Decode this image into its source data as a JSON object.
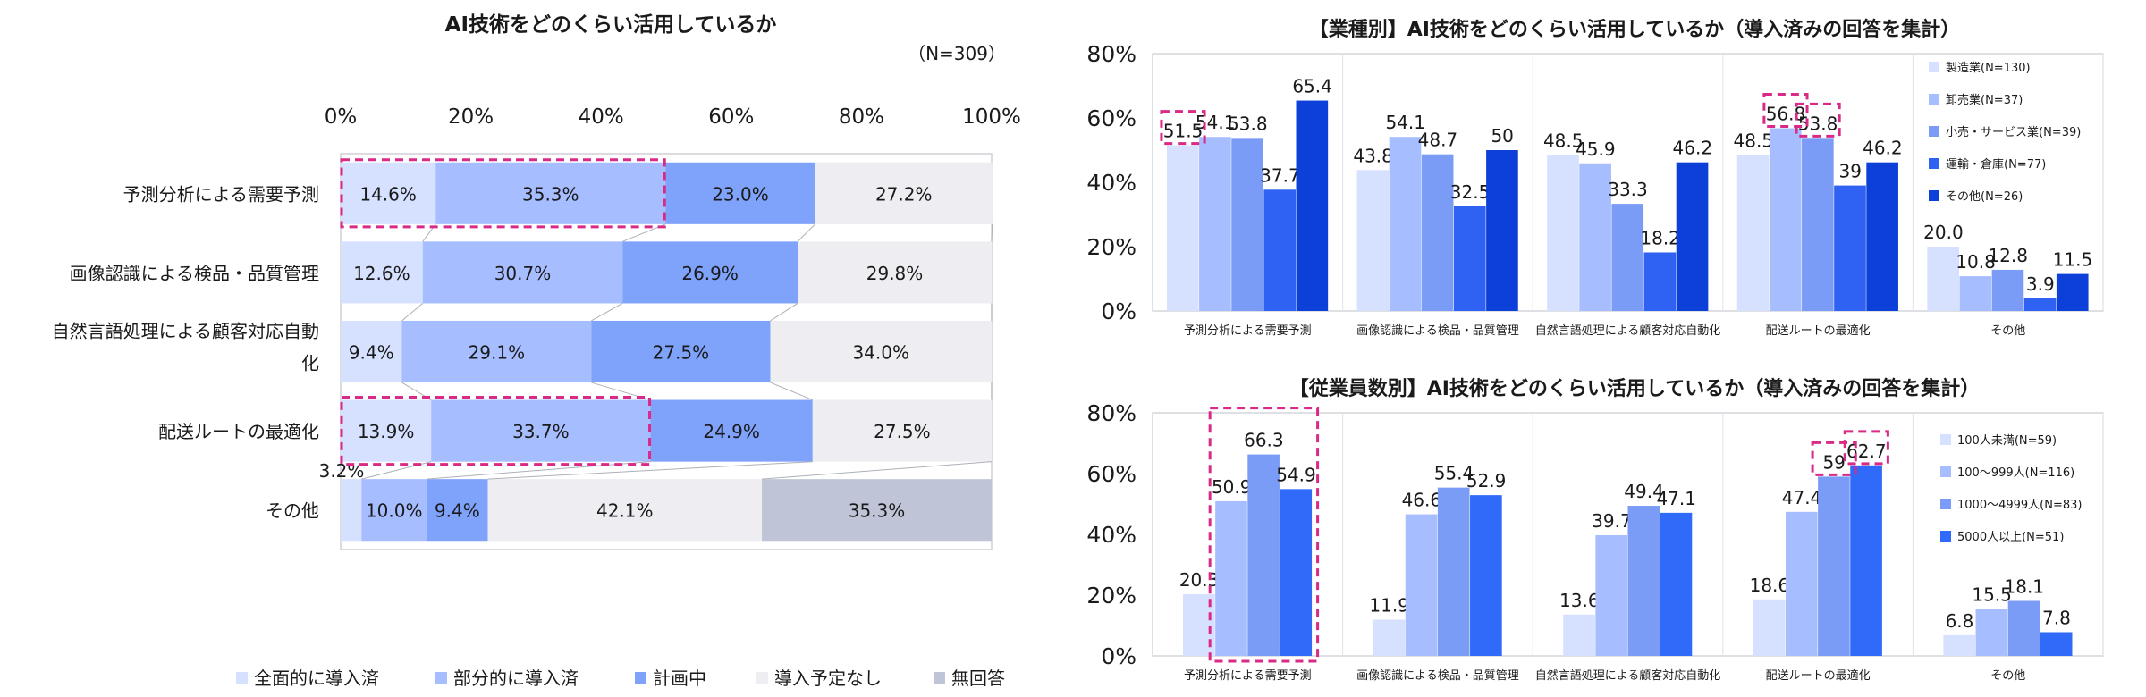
{
  "colors": {
    "stack": [
      "#d6e0ff",
      "#a6bdff",
      "#7fa2fb",
      "#eeeef2",
      "#bfc5d6"
    ],
    "industry": [
      "#d6e0ff",
      "#a6bdff",
      "#7b9cf6",
      "#2f62f2",
      "#0d3fd9"
    ],
    "employees": [
      "#d6e0ff",
      "#a6bdff",
      "#7b9cf6",
      "#2f6af9"
    ],
    "highlight": "#d92a87"
  },
  "chart_data": [
    {
      "type": "bar",
      "orientation": "horizontal-stacked",
      "title": "AI技術をどのくらい活用しているか",
      "subtitle": "（N=309）",
      "categories": [
        "予測分析による需要予測",
        "画像認識による検品・品質管理",
        "自然言語処理による顧客対応自動化",
        "配送ルートの最適化",
        "その他"
      ],
      "category_lines": [
        [
          "予測分析による需要予測"
        ],
        [
          "画像認識による検品・品質管理"
        ],
        [
          "自然言語処理による顧客対応自動",
          "化"
        ],
        [
          "配送ルートの最適化"
        ],
        [
          "その他"
        ]
      ],
      "series": [
        {
          "name": "全面的に導入済",
          "values": [
            14.6,
            12.6,
            9.4,
            13.9,
            3.2
          ]
        },
        {
          "name": "部分的に導入済",
          "values": [
            35.3,
            30.7,
            29.1,
            33.7,
            10.0
          ]
        },
        {
          "name": "計画中",
          "values": [
            23.0,
            26.9,
            27.5,
            24.9,
            9.4
          ]
        },
        {
          "name": "導入予定なし",
          "values": [
            27.2,
            29.8,
            34.0,
            27.5,
            42.1
          ]
        },
        {
          "name": "無回答",
          "values": [
            0,
            0,
            0,
            0,
            35.3
          ]
        }
      ],
      "x_ticks": [
        "0%",
        "20%",
        "40%",
        "60%",
        "80%",
        "100%"
      ],
      "xlim": [
        0,
        100
      ],
      "legend": "bottom",
      "highlighted": [
        {
          "category": "予測分析による需要予測",
          "series": [
            "全面的に導入済",
            "部分的に導入済"
          ]
        },
        {
          "category": "配送ルートの最適化",
          "series": [
            "全面的に導入済",
            "部分的に導入済"
          ]
        }
      ]
    },
    {
      "type": "bar",
      "title": "【業種別】AI技術をどのくらい活用しているか（導入済みの回答を集計）",
      "categories": [
        "予測分析による需要予測",
        "画像認識による検品・品質管理",
        "自然言語処理による顧客対応自動化",
        "配送ルートの最適化",
        "その他"
      ],
      "series": [
        {
          "name": "製造業(N=130)",
          "values": [
            51.5,
            43.8,
            48.5,
            48.5,
            20.0
          ],
          "labels": [
            "51.5",
            "43.8",
            "48.5",
            "48.5",
            "20.0"
          ]
        },
        {
          "name": "卸売業(N=37)",
          "values": [
            54.1,
            54.1,
            45.9,
            56.8,
            10.8
          ],
          "labels": [
            "54.1",
            "54.1",
            "45.9",
            "56.8",
            "10.8"
          ]
        },
        {
          "name": "小売・サービス業(N=39)",
          "values": [
            53.8,
            48.7,
            33.3,
            53.8,
            12.8
          ],
          "labels": [
            "53.8",
            "48.7",
            "33.3",
            "53.8",
            "12.8"
          ]
        },
        {
          "name": "運輸・倉庫(N=77)",
          "values": [
            37.7,
            32.5,
            18.2,
            39,
            3.9
          ],
          "labels": [
            "37.7",
            "32.5",
            "18.2",
            "39",
            "3.9"
          ]
        },
        {
          "name": "その他(N=26)",
          "values": [
            65.4,
            50,
            46.2,
            46.2,
            11.5
          ],
          "labels": [
            "65.4",
            "50",
            "46.2",
            "46.2",
            "11.5"
          ]
        }
      ],
      "y_ticks": [
        "0%",
        "20%",
        "40%",
        "60%",
        "80%"
      ],
      "ylim": [
        0,
        80
      ],
      "legend": "top-right",
      "highlighted": [
        {
          "category": "予測分析による需要予測",
          "series": [
            "製造業(N=130)"
          ]
        },
        {
          "category": "配送ルートの最適化",
          "series": [
            "卸売業(N=37)"
          ]
        },
        {
          "category": "配送ルートの最適化",
          "series": [
            "小売・サービス業(N=39)"
          ]
        }
      ]
    },
    {
      "type": "bar",
      "title": "【従業員数別】AI技術をどのくらい活用しているか（導入済みの回答を集計）",
      "categories": [
        "予測分析による需要予測",
        "画像認識による検品・品質管理",
        "自然言語処理による顧客対応自動化",
        "配送ルートの最適化",
        "その他"
      ],
      "series": [
        {
          "name": "100人未満(N=59)",
          "values": [
            20.3,
            11.9,
            13.6,
            18.6,
            6.8
          ],
          "labels": [
            "20.3",
            "11.9",
            "13.6",
            "18.6",
            "6.8"
          ]
        },
        {
          "name": "100～999人(N=116)",
          "values": [
            50.9,
            46.6,
            39.7,
            47.4,
            15.5
          ],
          "labels": [
            "50.9",
            "46.6",
            "39.7",
            "47.4",
            "15.5"
          ]
        },
        {
          "name": "1000～4999人(N=83)",
          "values": [
            66.3,
            55.4,
            49.4,
            59,
            18.1
          ],
          "labels": [
            "66.3",
            "55.4",
            "49.4",
            "59",
            "18.1"
          ]
        },
        {
          "name": "5000人以上(N=51)",
          "values": [
            54.9,
            52.9,
            47.1,
            62.7,
            7.8
          ],
          "labels": [
            "54.9",
            "52.9",
            "47.1",
            "62.7",
            "7.8"
          ]
        }
      ],
      "y_ticks": [
        "0%",
        "20%",
        "40%",
        "60%",
        "80%"
      ],
      "ylim": [
        0,
        80
      ],
      "legend": "top-right",
      "highlighted": [
        {
          "category": "予測分析による需要予測",
          "series": [
            "100～999人(N=116)",
            "1000～4999人(N=83)",
            "5000人以上(N=51)"
          ]
        },
        {
          "category": "配送ルートの最適化",
          "series": [
            "1000～4999人(N=83)"
          ]
        },
        {
          "category": "配送ルートの最適化",
          "series": [
            "5000人以上(N=51)"
          ]
        }
      ]
    }
  ]
}
